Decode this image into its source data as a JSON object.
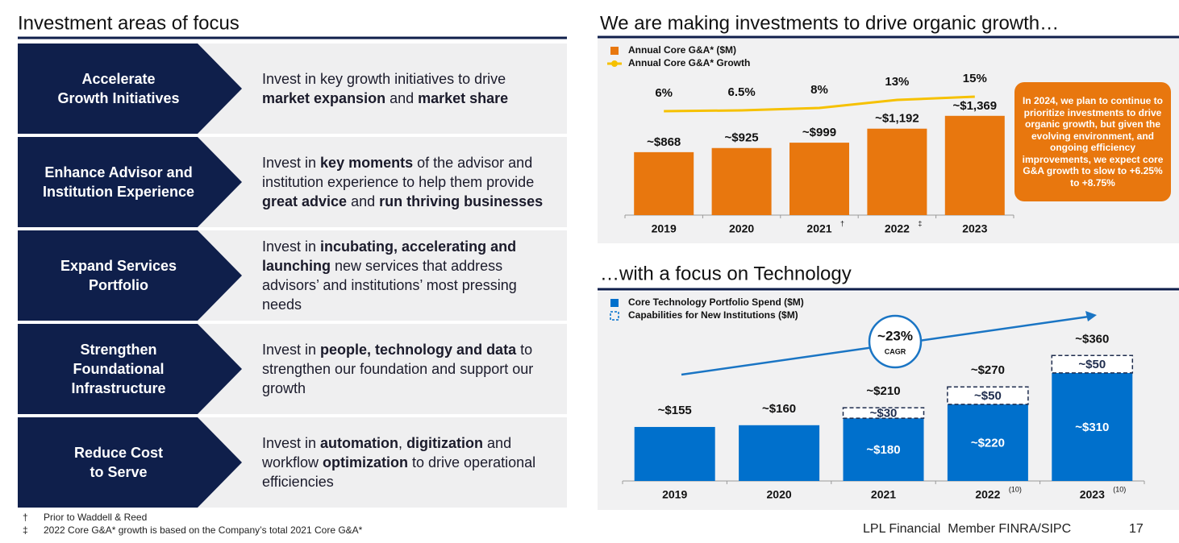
{
  "title": "Investment areas of focus",
  "focus_areas": [
    {
      "heading": [
        "Accelerate",
        "Growth Initiatives"
      ],
      "description": [
        {
          "text": "Invest in key growth initiatives to drive ",
          "bold": false
        },
        {
          "text": "market expansion",
          "bold": true
        },
        {
          "text": " and ",
          "bold": false
        },
        {
          "text": "market share",
          "bold": true
        }
      ]
    },
    {
      "heading": [
        "Enhance Advisor and",
        "Institution Experience"
      ],
      "description": [
        {
          "text": "Invest in ",
          "bold": false
        },
        {
          "text": "key moments",
          "bold": true
        },
        {
          "text": " of the advisor and institution experience to help them provide ",
          "bold": false
        },
        {
          "text": "great advice",
          "bold": true
        },
        {
          "text": " and ",
          "bold": false
        },
        {
          "text": "run thriving businesses",
          "bold": true
        }
      ]
    },
    {
      "heading": [
        "Expand Services",
        "Portfolio"
      ],
      "description": [
        {
          "text": "Invest in ",
          "bold": false
        },
        {
          "text": "incubating, accelerating and launching",
          "bold": true
        },
        {
          "text": " new services that address advisors’ and institutions’ most pressing needs",
          "bold": false
        }
      ]
    },
    {
      "heading": [
        "Strengthen",
        "Foundational",
        "Infrastructure"
      ],
      "description": [
        {
          "text": "Invest in ",
          "bold": false
        },
        {
          "text": "people, technology and data",
          "bold": true
        },
        {
          "text": " to strengthen our foundation and support our growth",
          "bold": false
        }
      ]
    },
    {
      "heading": [
        "Reduce Cost",
        "to Serve"
      ],
      "description": [
        {
          "text": "Invest in ",
          "bold": false
        },
        {
          "text": "automation",
          "bold": true
        },
        {
          "text": ", ",
          "bold": false
        },
        {
          "text": "digitization",
          "bold": true
        },
        {
          "text": " and workflow ",
          "bold": false
        },
        {
          "text": "optimization",
          "bold": true
        },
        {
          "text": " to drive operational efficiencies",
          "bold": false
        }
      ]
    }
  ],
  "footnotes": [
    {
      "symbol": "†",
      "text": "Prior to Waddell & Reed"
    },
    {
      "symbol": "‡",
      "text": "2022 Core G&A* growth is based on the Company’s total 2021 Core G&A*"
    }
  ],
  "footer": {
    "company": "LPL Financial  Member FINRA/SIPC",
    "page": "17"
  },
  "chart_data": [
    {
      "type": "bar",
      "title": "We are making investments to drive organic growth…",
      "categories": [
        "2019",
        "2020",
        "2021",
        "2022",
        "2023"
      ],
      "category_marks": [
        null,
        null,
        "†",
        "‡",
        null
      ],
      "series": [
        {
          "name": "Annual Core G&A* ($M)",
          "color": "#e8770e",
          "values": [
            868,
            925,
            999,
            1192,
            1369
          ],
          "value_labels": [
            "~$868",
            "~$925",
            "~$999",
            "~$1,192",
            "~$1,369"
          ]
        },
        {
          "name": "Annual Core G&A* Growth",
          "color": "#f6c100",
          "type": "line",
          "axis": "y2",
          "values": [
            6,
            6.5,
            8,
            13,
            15
          ],
          "value_labels": [
            "6%",
            "6.5%",
            "8%",
            "13%",
            "15%"
          ]
        }
      ],
      "ylim": [
        0,
        1500
      ],
      "y2lim": [
        0,
        20
      ],
      "annotation": "In 2024, we plan to continue to prioritize investments to drive organic growth, but given the evolving environment, and ongoing efficiency improvements, we expect core G&A growth to slow to +6.25% to +8.75%",
      "annotation_color": "#e8770e"
    },
    {
      "type": "stacked_bar",
      "title": "…with a focus on Technology",
      "categories": [
        "2019",
        "2020",
        "2021",
        "2022",
        "2023"
      ],
      "category_marks": [
        null,
        null,
        null,
        "(10)",
        "(10)"
      ],
      "series": [
        {
          "name": "Core Technology Portfolio Spend ($M)",
          "color": "#0070cc",
          "values": [
            155,
            160,
            180,
            220,
            310
          ],
          "value_labels": [
            null,
            null,
            "~$180",
            "~$220",
            "~$310"
          ]
        },
        {
          "name": "Capabilities for New Institutions ($M)",
          "color": "#0070cc",
          "style": "dashed",
          "values": [
            null,
            null,
            30,
            50,
            50
          ],
          "value_labels": [
            null,
            null,
            "~$30",
            "~$50",
            "~$50"
          ]
        }
      ],
      "total_labels": [
        "~$155",
        "~$160",
        "~$210",
        "~$270",
        "~$360"
      ],
      "ylim": [
        0,
        400
      ],
      "growth_label": "~23%",
      "growth_text": "CAGR"
    }
  ]
}
